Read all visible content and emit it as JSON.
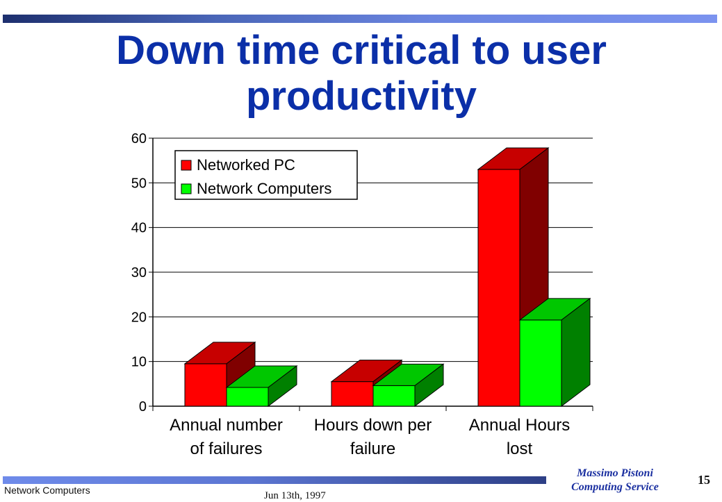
{
  "slide": {
    "title_line1": "Down time critical to user",
    "title_line2": "productivity",
    "footer_left": "Network Computers",
    "footer_date": "Jun 13th, 1997",
    "author_name": "Massimo Pistoni",
    "author_dept": "Computing Service",
    "page_number": "15"
  },
  "colors": {
    "title": "#0b2fa8",
    "series_red": "#ff0000",
    "series_green": "#00ff00"
  },
  "chart_data": {
    "type": "bar",
    "categories": [
      [
        "Annual number",
        "of failures"
      ],
      [
        "Hours down per",
        "failure"
      ],
      [
        "Annual Hours",
        "lost"
      ]
    ],
    "series": [
      {
        "name": "Networked PC",
        "values": [
          9.5,
          5.5,
          53
        ],
        "color": "#ff0000"
      },
      {
        "name": "Network Computers",
        "values": [
          4.2,
          4.6,
          19.3
        ],
        "color": "#00ff00"
      }
    ],
    "ylim": [
      0,
      60
    ],
    "yticks": [
      0,
      10,
      20,
      30,
      40,
      50,
      60
    ],
    "grid": true,
    "legend_position": "top-left",
    "three_d": true
  }
}
